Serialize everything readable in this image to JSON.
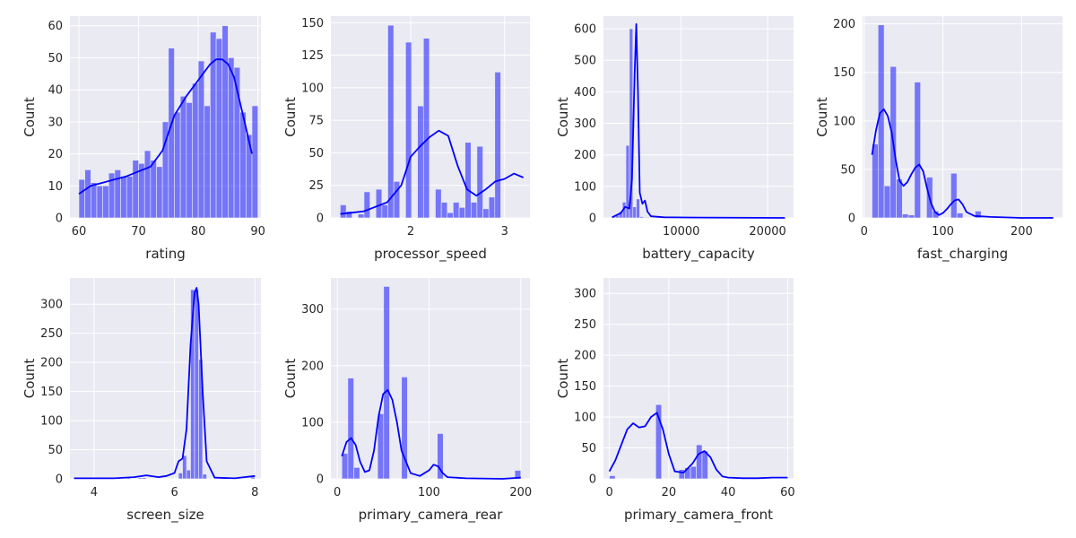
{
  "figure": {
    "title": ""
  },
  "chart_data": [
    {
      "type": "histogram_kde",
      "xlabel": "rating",
      "ylabel": "Count",
      "xlim": [
        58.5,
        90.5
      ],
      "ylim": [
        0,
        63
      ],
      "xticks": [
        60,
        70,
        80,
        90
      ],
      "yticks": [
        0,
        10,
        20,
        30,
        40,
        50,
        60
      ],
      "bins": {
        "start": 60,
        "width": 1,
        "counts": [
          12,
          15,
          11,
          10,
          10,
          14,
          15,
          13,
          13,
          18,
          17,
          21,
          18,
          16,
          30,
          53,
          33,
          38,
          36,
          42,
          49,
          35,
          58,
          56,
          60,
          50,
          47,
          33,
          26,
          35
        ]
      },
      "kde": {
        "x": [
          60,
          62,
          64,
          66,
          68,
          70,
          72,
          74,
          76,
          78,
          80,
          82,
          83,
          84,
          85,
          86,
          87,
          88,
          89
        ],
        "y": [
          7.5,
          10,
          11,
          12,
          13,
          14.5,
          16,
          21,
          32,
          38,
          43,
          48,
          49.5,
          49.5,
          48,
          44,
          36,
          28,
          20
        ]
      },
      "color": "#0000ff"
    },
    {
      "type": "histogram_kde",
      "xlabel": "processor_speed",
      "ylabel": "Count",
      "xlim": [
        1.15,
        3.27
      ],
      "ylim": [
        0,
        155
      ],
      "xticks": [
        2,
        3
      ],
      "yticks": [
        0,
        25,
        50,
        75,
        100,
        125,
        150
      ],
      "bins": {
        "start": 1.25,
        "width": 0.0633,
        "counts": [
          10,
          5,
          0,
          3,
          20,
          0,
          22,
          10,
          148,
          28,
          0,
          135,
          0,
          86,
          138,
          0,
          22,
          12,
          4,
          12,
          8,
          58,
          12,
          55,
          7,
          16,
          112
        ]
      },
      "kde": {
        "x": [
          1.25,
          1.5,
          1.75,
          1.9,
          2.0,
          2.1,
          2.2,
          2.3,
          2.4,
          2.5,
          2.6,
          2.7,
          2.8,
          2.9,
          3.0,
          3.1,
          3.2
        ],
        "y": [
          3,
          5,
          12,
          25,
          47,
          55,
          62,
          67,
          63,
          40,
          22,
          17,
          22,
          28,
          30,
          34,
          31
        ]
      },
      "color": "#0000ff"
    },
    {
      "type": "histogram_kde",
      "xlabel": "battery_capacity",
      "ylabel": "Count",
      "xlim": [
        1000,
        23000
      ],
      "ylim": [
        0,
        640
      ],
      "xticks": [
        10000,
        20000
      ],
      "yticks": [
        0,
        100,
        200,
        300,
        400,
        500,
        600
      ],
      "bins": {
        "start": 2000,
        "width": 400,
        "counts": [
          3,
          8,
          20,
          50,
          230,
          600,
          35,
          60,
          4,
          2,
          2,
          1,
          1,
          1,
          0,
          0,
          0,
          0,
          0,
          0,
          0,
          0,
          0,
          0,
          0,
          0,
          0,
          0,
          0,
          0,
          0,
          0,
          0,
          0,
          0,
          0,
          0,
          0,
          0,
          0,
          0,
          0,
          0,
          0,
          0,
          0,
          0,
          0,
          0,
          1
        ]
      },
      "kde": {
        "x": [
          2000,
          3000,
          3500,
          4000,
          4300,
          4600,
          4800,
          5000,
          5200,
          5500,
          5800,
          6100,
          6500,
          8000,
          12000,
          22000
        ],
        "y": [
          2,
          15,
          35,
          30,
          120,
          450,
          615,
          400,
          80,
          45,
          55,
          20,
          5,
          2,
          1,
          0
        ]
      },
      "color": "#0000ff"
    },
    {
      "type": "histogram_kde",
      "xlabel": "fast_charging",
      "ylabel": "Count",
      "xlim": [
        -2,
        252
      ],
      "ylim": [
        0,
        208
      ],
      "xticks": [
        0,
        100,
        200
      ],
      "yticks": [
        0,
        50,
        100,
        150,
        200
      ],
      "bins": {
        "start": 10,
        "width": 7.7,
        "counts": [
          76,
          199,
          33,
          156,
          40,
          4,
          3,
          140,
          0,
          42,
          7,
          0,
          0,
          46,
          5,
          0,
          0,
          7,
          0,
          0,
          0,
          0,
          0,
          0,
          0,
          0,
          0,
          0,
          0,
          1
        ]
      },
      "kde": {
        "x": [
          10,
          15,
          20,
          25,
          30,
          35,
          40,
          45,
          50,
          55,
          60,
          65,
          70,
          75,
          80,
          85,
          90,
          95,
          100,
          105,
          110,
          115,
          120,
          125,
          130,
          140,
          160,
          200,
          240
        ],
        "y": [
          65,
          90,
          108,
          112,
          105,
          88,
          60,
          38,
          33,
          37,
          45,
          52,
          55,
          48,
          30,
          15,
          6,
          3,
          5,
          9,
          14,
          18,
          19,
          14,
          6,
          2,
          1,
          0,
          0
        ]
      },
      "color": "#0000ff"
    },
    {
      "type": "histogram_kde",
      "xlabel": "screen_size",
      "ylabel": "Count",
      "xlim": [
        3.4,
        8.15
      ],
      "ylim": [
        0,
        345
      ],
      "xticks": [
        4,
        6,
        8
      ],
      "yticks": [
        0,
        50,
        100,
        150,
        200,
        250,
        300
      ],
      "bins": {
        "start": 3.5,
        "width": 0.1,
        "counts": [
          2,
          0,
          0,
          0,
          0,
          0,
          0,
          0,
          0,
          0,
          0,
          0,
          0,
          3,
          0,
          0,
          2,
          2,
          0,
          0,
          0,
          0,
          0,
          0,
          0,
          0,
          10,
          40,
          15,
          325,
          325,
          205,
          8,
          0,
          0,
          0,
          0,
          0,
          0,
          0,
          0,
          0,
          0,
          0,
          3
        ]
      },
      "kde": {
        "x": [
          3.5,
          4.5,
          5.0,
          5.3,
          5.6,
          5.8,
          6.0,
          6.1,
          6.2,
          6.3,
          6.4,
          6.5,
          6.55,
          6.6,
          6.7,
          6.8,
          7.0,
          7.5,
          8.0
        ],
        "y": [
          1,
          1,
          3,
          6,
          3,
          5,
          10,
          30,
          35,
          85,
          230,
          320,
          328,
          300,
          150,
          30,
          2,
          1,
          5
        ]
      },
      "color": "#0000ff"
    },
    {
      "type": "histogram_kde",
      "xlabel": "primary_camera_rear",
      "ylabel": "Count",
      "xlim": [
        -7,
        210
      ],
      "ylim": [
        0,
        355
      ],
      "xticks": [
        0,
        100,
        200
      ],
      "yticks": [
        0,
        100,
        200,
        300
      ],
      "bins": {
        "start": 5,
        "width": 6.5,
        "counts": [
          45,
          178,
          20,
          0,
          0,
          0,
          115,
          340,
          0,
          0,
          180,
          0,
          0,
          0,
          0,
          0,
          80,
          0,
          0,
          0,
          0,
          0,
          0,
          0,
          0,
          0,
          0,
          0,
          0,
          15
        ]
      },
      "kde": {
        "x": [
          5,
          10,
          15,
          20,
          25,
          30,
          35,
          40,
          45,
          50,
          55,
          60,
          65,
          70,
          80,
          90,
          100,
          105,
          110,
          115,
          120,
          140,
          180,
          200
        ],
        "y": [
          40,
          65,
          72,
          60,
          30,
          12,
          15,
          50,
          110,
          150,
          157,
          140,
          100,
          50,
          10,
          5,
          15,
          25,
          22,
          10,
          3,
          1,
          0,
          2
        ]
      },
      "color": "#0000ff"
    },
    {
      "type": "histogram_kde",
      "xlabel": "primary_camera_front",
      "ylabel": "Count",
      "xlim": [
        -2,
        62
      ],
      "ylim": [
        0,
        325
      ],
      "xticks": [
        0,
        20,
        40,
        60
      ],
      "yticks": [
        0,
        50,
        100,
        150,
        200,
        250,
        300
      ],
      "bins": {
        "start": 0,
        "width": 1.95,
        "counts": [
          5,
          0,
          0,
          0,
          0,
          0,
          0,
          0,
          120,
          0,
          0,
          0,
          15,
          18,
          20,
          55,
          45,
          0,
          0,
          0,
          0,
          0,
          0,
          0,
          0,
          0,
          0,
          0,
          0,
          0
        ]
      },
      "kde": {
        "x": [
          0,
          2,
          4,
          6,
          8,
          10,
          12,
          14,
          16,
          18,
          20,
          22,
          25,
          28,
          30,
          32,
          34,
          36,
          38,
          40,
          45,
          50,
          55,
          60
        ],
        "y": [
          12,
          30,
          55,
          80,
          90,
          83,
          85,
          100,
          107,
          80,
          40,
          12,
          10,
          25,
          40,
          45,
          35,
          15,
          4,
          2,
          1,
          1,
          2,
          2
        ]
      },
      "color": "#0000ff"
    }
  ]
}
